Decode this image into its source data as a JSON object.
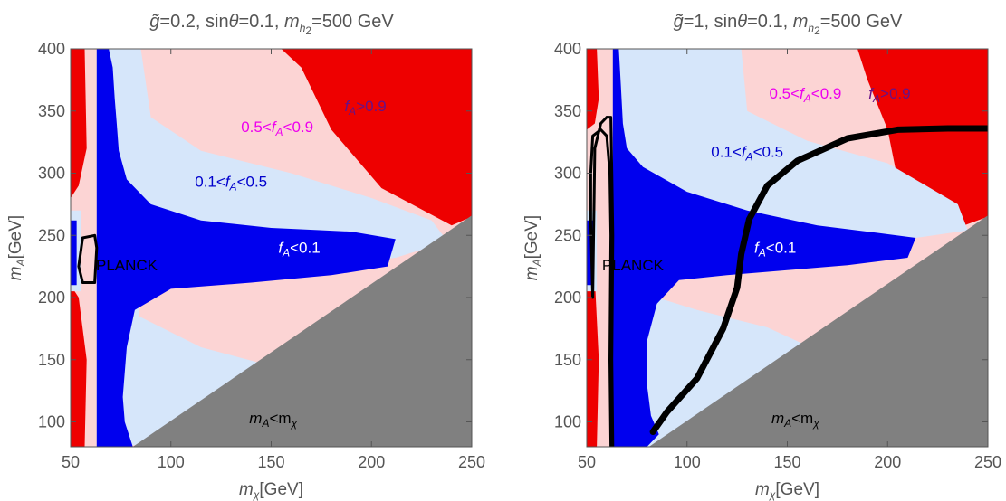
{
  "chart_data": [
    {
      "type": "heatmap",
      "title": {
        "g": "g̃",
        "g_value": "=0.2, sin",
        "theta": "θ",
        "theta_value": "=0.1, ",
        "mh": "m",
        "mh_sub": "h",
        "mh_sub2": "2",
        "mh_value": "=500 GeV"
      },
      "xlabel": {
        "sym": "m",
        "sub": "χ",
        "unit": "[GeV]"
      },
      "ylabel": {
        "sym": "m",
        "sub": "A",
        "unit": "[GeV]"
      },
      "xlim": [
        50,
        250
      ],
      "ylim": [
        80,
        400
      ],
      "x_ticks": [
        "50",
        "100",
        "150",
        "200",
        "250"
      ],
      "y_ticks": [
        "100",
        "150",
        "200",
        "250",
        "300",
        "350",
        "400"
      ],
      "colors": {
        "fA_lt_0.1": "#0000ee",
        "fA_0.1_0.5": "#d6e6fa",
        "fA_0.5_0.9": "#fcd4d4",
        "fA_gt_0.9": "#ee0000",
        "kinematic_forbidden": "#808080",
        "planck_contour": "#000000"
      },
      "regions": [
        {
          "id": "fA_gt_0.9",
          "label": {
            "pre": "",
            "f": "f",
            "sub": "A",
            "post": ">0.9"
          },
          "color": "#661188",
          "at": [
            197,
            350
          ]
        },
        {
          "id": "fA_0.5_0.9",
          "label": {
            "pre": "0.5<",
            "f": "f",
            "sub": "A",
            "post": "<0.9"
          },
          "color": "#ee00ee",
          "at": [
            153,
            333
          ]
        },
        {
          "id": "fA_0.1_0.5",
          "label": {
            "pre": "0.1<",
            "f": "f",
            "sub": "A",
            "post": "<0.5"
          },
          "color": "#0000cc",
          "at": [
            130,
            289
          ]
        },
        {
          "id": "fA_lt_0.1",
          "label": {
            "pre": "",
            "f": "f",
            "sub": "A",
            "post": "<0.1"
          },
          "color": "#ffffff",
          "at": [
            164,
            236
          ]
        },
        {
          "id": "planck",
          "label": {
            "pre": "PLANCK",
            "f": "",
            "sub": "",
            "post": ""
          },
          "color": "#000000",
          "at": [
            78,
            222
          ]
        },
        {
          "id": "forbidden",
          "label": {
            "pre": "",
            "f": "m",
            "sub": "A",
            "post": "<m",
            "f2": "",
            "sub2": "χ"
          },
          "color": "#000000",
          "at": [
            151,
            99
          ]
        }
      ],
      "blue_region": {
        "upper": [
          [
            63,
            400
          ],
          [
            69,
            400
          ],
          [
            71,
            385
          ],
          [
            72,
            360
          ],
          [
            73,
            340
          ],
          [
            74,
            318
          ],
          [
            78,
            295
          ],
          [
            90,
            275
          ],
          [
            115,
            262
          ],
          [
            150,
            256
          ],
          [
            190,
            253
          ],
          [
            212,
            247
          ],
          [
            208,
            225
          ],
          [
            180,
            218
          ],
          [
            140,
            212
          ],
          [
            100,
            207
          ],
          [
            82,
            190
          ],
          [
            78,
            160
          ],
          [
            76,
            120
          ],
          [
            77,
            100
          ],
          [
            81,
            80
          ],
          [
            63,
            80
          ]
        ]
      },
      "light_region": [
        [
          69,
          400
        ],
        [
          85,
          400
        ],
        [
          90,
          345
        ],
        [
          115,
          318
        ],
        [
          160,
          300
        ],
        [
          200,
          280
        ],
        [
          230,
          262
        ],
        [
          238,
          245
        ],
        [
          212,
          232
        ],
        [
          170,
          225
        ],
        [
          130,
          218
        ],
        [
          100,
          214
        ],
        [
          84,
          205
        ],
        [
          84,
          185
        ],
        [
          115,
          160
        ],
        [
          150,
          145
        ],
        [
          180,
          130
        ],
        [
          200,
          115
        ],
        [
          77,
          80
        ],
        [
          63,
          80
        ]
      ],
      "red_region": [
        [
          155,
          400
        ],
        [
          250,
          400
        ],
        [
          250,
          265
        ],
        [
          240,
          258
        ],
        [
          205,
          288
        ],
        [
          180,
          335
        ],
        [
          165,
          385
        ]
      ],
      "red_left": [
        [
          50,
          400
        ],
        [
          57,
          400
        ],
        [
          58,
          320
        ],
        [
          54,
          290
        ],
        [
          50,
          280
        ]
      ],
      "red_left_low": [
        [
          50,
          210
        ],
        [
          54,
          200
        ],
        [
          58,
          150
        ],
        [
          57,
          80
        ],
        [
          50,
          80
        ]
      ],
      "planck_contour": [
        [
          [
            56,
            248
          ],
          [
            62,
            250
          ],
          [
            63,
            240
          ],
          [
            62,
            212
          ],
          [
            56,
            212
          ],
          [
            54,
            225
          ],
          [
            56,
            248
          ]
        ]
      ],
      "forbidden_line": [
        [
          81,
          80
        ],
        [
          250,
          266
        ]
      ]
    },
    {
      "type": "heatmap",
      "title": {
        "g": "g̃",
        "g_value": "=1, sin",
        "theta": "θ",
        "theta_value": "=0.1, ",
        "mh": "m",
        "mh_sub": "h",
        "mh_sub2": "2",
        "mh_value": "=500 GeV"
      },
      "xlabel": {
        "sym": "m",
        "sub": "χ",
        "unit": "[GeV]"
      },
      "ylabel": {
        "sym": "m",
        "sub": "A",
        "unit": "[GeV]"
      },
      "xlim": [
        50,
        250
      ],
      "ylim": [
        80,
        400
      ],
      "x_ticks": [
        "50",
        "100",
        "150",
        "200",
        "250"
      ],
      "y_ticks": [
        "100",
        "150",
        "200",
        "250",
        "300",
        "350",
        "400"
      ],
      "colors": {
        "fA_lt_0.1": "#0000ee",
        "fA_0.1_0.5": "#d6e6fa",
        "fA_0.5_0.9": "#fcd4d4",
        "fA_gt_0.9": "#ee0000",
        "kinematic_forbidden": "#808080",
        "planck_contour": "#000000"
      },
      "regions": [
        {
          "id": "fA_gt_0.9",
          "label": {
            "pre": "",
            "f": "f",
            "sub": "A",
            "post": ">0.9"
          },
          "color": "#661188",
          "at": [
            201,
            360
          ]
        },
        {
          "id": "fA_0.5_0.9",
          "label": {
            "pre": "0.5<",
            "f": "f",
            "sub": "A",
            "post": "<0.9"
          },
          "color": "#ee00ee",
          "at": [
            159,
            360
          ]
        },
        {
          "id": "fA_0.1_0.5",
          "label": {
            "pre": "0.1<",
            "f": "f",
            "sub": "A",
            "post": "<0.5"
          },
          "color": "#0000cc",
          "at": [
            130,
            313
          ]
        },
        {
          "id": "fA_lt_0.1",
          "label": {
            "pre": "",
            "f": "f",
            "sub": "A",
            "post": "<0.1"
          },
          "color": "#ffffff",
          "at": [
            144,
            236
          ]
        },
        {
          "id": "planck",
          "label": {
            "pre": "PLANCK",
            "f": "",
            "sub": "",
            "post": ""
          },
          "color": "#000000",
          "at": [
            73,
            222
          ]
        },
        {
          "id": "forbidden",
          "label": {
            "pre": "",
            "f": "m",
            "sub": "A",
            "post": "<m",
            "f2": "",
            "sub2": "χ"
          },
          "color": "#000000",
          "at": [
            154,
            99
          ]
        }
      ],
      "blue_region": {
        "upper": [
          [
            63,
            400
          ],
          [
            66,
            400
          ],
          [
            67,
            370
          ],
          [
            68,
            340
          ],
          [
            70,
            320
          ],
          [
            78,
            305
          ],
          [
            100,
            285
          ],
          [
            130,
            270
          ],
          [
            165,
            258
          ],
          [
            195,
            252
          ],
          [
            214,
            248
          ],
          [
            210,
            232
          ],
          [
            180,
            226
          ],
          [
            150,
            222
          ],
          [
            120,
            218
          ],
          [
            96,
            214
          ],
          [
            85,
            195
          ],
          [
            80,
            165
          ],
          [
            80,
            130
          ],
          [
            82,
            105
          ],
          [
            86,
            90
          ],
          [
            80,
            80
          ],
          [
            63,
            80
          ]
        ]
      },
      "light_region": [
        [
          66,
          400
        ],
        [
          127,
          400
        ],
        [
          130,
          350
        ],
        [
          160,
          326
        ],
        [
          200,
          308
        ],
        [
          235,
          275
        ],
        [
          240,
          254
        ],
        [
          214,
          248
        ],
        [
          210,
          232
        ],
        [
          150,
          222
        ],
        [
          120,
          218
        ],
        [
          96,
          214
        ],
        [
          85,
          200
        ],
        [
          105,
          190
        ],
        [
          140,
          176
        ],
        [
          175,
          150
        ],
        [
          200,
          120
        ],
        [
          80,
          80
        ],
        [
          63,
          80
        ]
      ],
      "red_region": [
        [
          185,
          400
        ],
        [
          250,
          400
        ],
        [
          250,
          265
        ],
        [
          228,
          252
        ],
        [
          205,
          295
        ],
        [
          200,
          335
        ],
        [
          190,
          375
        ]
      ],
      "red_left": [
        [
          50,
          400
        ],
        [
          55,
          400
        ],
        [
          56,
          360
        ],
        [
          54,
          340
        ],
        [
          50,
          335
        ]
      ],
      "red_left_low": [
        [
          50,
          220
        ],
        [
          54,
          215
        ],
        [
          56,
          150
        ],
        [
          55,
          80
        ],
        [
          50,
          80
        ]
      ],
      "planck_contour": [
        [
          [
            60,
            345
          ],
          [
            62,
            345
          ],
          [
            62.5,
            300
          ],
          [
            63,
            250
          ],
          [
            62.5,
            150
          ],
          [
            63,
            80
          ],
          [
            62,
            80
          ],
          [
            61.5,
            150
          ],
          [
            62,
            250
          ],
          [
            61.5,
            300
          ],
          [
            60,
            330
          ],
          [
            57,
            335
          ],
          [
            53,
            330
          ],
          [
            52,
            300
          ],
          [
            52,
            260
          ],
          [
            52.5,
            230
          ],
          [
            53,
            200
          ],
          [
            54,
            320
          ],
          [
            57,
            340
          ],
          [
            60,
            345
          ]
        ],
        [
          [
            83,
            92
          ],
          [
            90,
            108
          ],
          [
            105,
            135
          ],
          [
            118,
            175
          ],
          [
            125,
            208
          ],
          [
            127,
            235
          ],
          [
            131,
            263
          ],
          [
            140,
            290
          ],
          [
            155,
            310
          ],
          [
            180,
            328
          ],
          [
            205,
            335
          ],
          [
            230,
            336
          ],
          [
            250,
            336
          ]
        ]
      ],
      "forbidden_line": [
        [
          81,
          80
        ],
        [
          250,
          266
        ]
      ]
    }
  ]
}
